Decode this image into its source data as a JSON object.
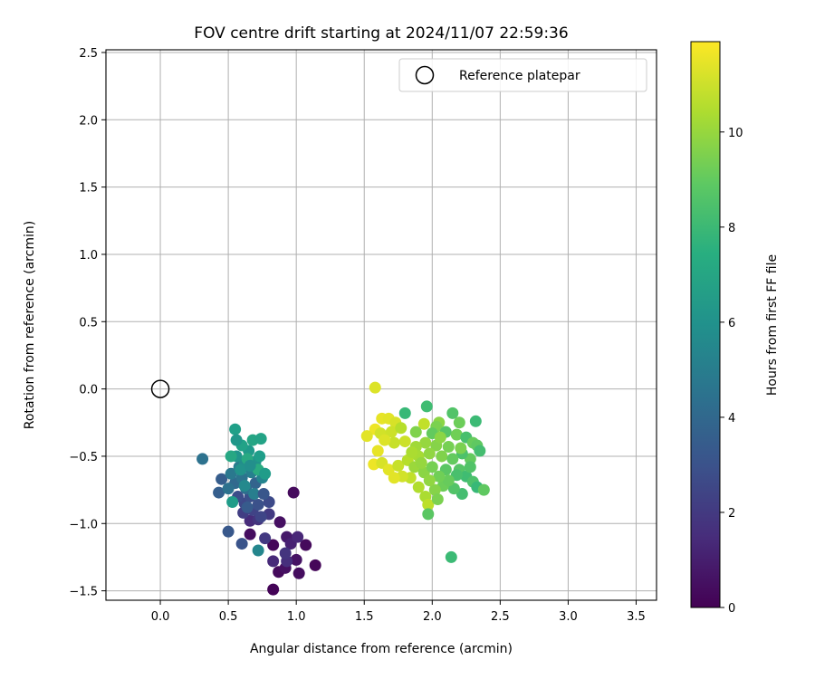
{
  "chart_data": {
    "type": "scatter",
    "title": "FOV centre drift starting at 2024/11/07 22:59:36",
    "xlabel": "Angular distance from reference (arcmin)",
    "ylabel": "Rotation from reference (arcmin)",
    "xlim": [
      -0.4,
      3.65
    ],
    "ylim": [
      -1.57,
      2.52
    ],
    "xticks": [
      0.0,
      0.5,
      1.0,
      1.5,
      2.0,
      2.5,
      3.0,
      3.5
    ],
    "yticks": [
      -1.5,
      -1.0,
      -0.5,
      0.0,
      0.5,
      1.0,
      1.5,
      2.0,
      2.5
    ],
    "xtick_labels": [
      "0.0",
      "0.5",
      "1.0",
      "1.5",
      "2.0",
      "2.5",
      "3.0",
      "3.5"
    ],
    "ytick_labels": [
      "−1.5",
      "−1.0",
      "−0.5",
      "0.0",
      "0.5",
      "1.0",
      "1.5",
      "2.0",
      "2.5"
    ],
    "grid": true,
    "legend": {
      "placement": "top-right",
      "entries": [
        "Reference platepar"
      ]
    },
    "reference_point": {
      "x": 0.0,
      "y": 0.0
    },
    "colorbar": {
      "label": "Hours from first FF file",
      "range": [
        0,
        11.9
      ],
      "ticks": [
        0,
        2,
        4,
        6,
        8,
        10
      ],
      "tick_labels": [
        "0",
        "2",
        "4",
        "6",
        "8",
        "10"
      ],
      "colormap": "viridis"
    },
    "points": [
      {
        "x": 0.83,
        "y": -1.49,
        "h": 0.1
      },
      {
        "x": 0.87,
        "y": -1.36,
        "h": 0.3
      },
      {
        "x": 0.92,
        "y": -1.33,
        "h": 0.5
      },
      {
        "x": 1.02,
        "y": -1.37,
        "h": 0.4
      },
      {
        "x": 1.14,
        "y": -1.31,
        "h": 0.2
      },
      {
        "x": 1.07,
        "y": -1.16,
        "h": 0.3
      },
      {
        "x": 1.0,
        "y": -1.27,
        "h": 0.6
      },
      {
        "x": 0.83,
        "y": -1.16,
        "h": 0.2
      },
      {
        "x": 0.88,
        "y": -0.99,
        "h": 0.5
      },
      {
        "x": 0.98,
        "y": -0.77,
        "h": 0.3
      },
      {
        "x": 0.66,
        "y": -1.08,
        "h": 0.4
      },
      {
        "x": 0.93,
        "y": -1.1,
        "h": 0.8
      },
      {
        "x": 0.96,
        "y": -1.15,
        "h": 1.1
      },
      {
        "x": 1.01,
        "y": -1.1,
        "h": 1.3
      },
      {
        "x": 0.83,
        "y": -1.28,
        "h": 1.4
      },
      {
        "x": 0.93,
        "y": -1.28,
        "h": 1.6
      },
      {
        "x": 0.92,
        "y": -1.22,
        "h": 1.8
      },
      {
        "x": 0.77,
        "y": -1.11,
        "h": 2.0
      },
      {
        "x": 0.66,
        "y": -0.98,
        "h": 1.5
      },
      {
        "x": 0.72,
        "y": -0.97,
        "h": 1.8
      },
      {
        "x": 0.8,
        "y": -0.93,
        "h": 2.0
      },
      {
        "x": 0.61,
        "y": -0.92,
        "h": 2.2
      },
      {
        "x": 0.68,
        "y": -0.9,
        "h": 2.4
      },
      {
        "x": 0.62,
        "y": -0.85,
        "h": 2.6
      },
      {
        "x": 0.74,
        "y": -0.95,
        "h": 2.5
      },
      {
        "x": 0.57,
        "y": -0.8,
        "h": 2.8
      },
      {
        "x": 0.66,
        "y": -0.8,
        "h": 2.9
      },
      {
        "x": 0.8,
        "y": -0.84,
        "h": 2.7
      },
      {
        "x": 0.72,
        "y": -0.86,
        "h": 3.0
      },
      {
        "x": 0.6,
        "y": -1.15,
        "h": 3.1
      },
      {
        "x": 0.5,
        "y": -1.06,
        "h": 3.3
      },
      {
        "x": 0.45,
        "y": -0.67,
        "h": 3.5
      },
      {
        "x": 0.43,
        "y": -0.77,
        "h": 3.6
      },
      {
        "x": 0.31,
        "y": -0.52,
        "h": 4.5
      },
      {
        "x": 0.72,
        "y": -1.2,
        "h": 5.5
      },
      {
        "x": 0.55,
        "y": -0.7,
        "h": 4.0
      },
      {
        "x": 0.63,
        "y": -0.74,
        "h": 4.2
      },
      {
        "x": 0.7,
        "y": -0.7,
        "h": 3.8
      },
      {
        "x": 0.52,
        "y": -0.63,
        "h": 4.8
      },
      {
        "x": 0.58,
        "y": -0.58,
        "h": 5.0
      },
      {
        "x": 0.67,
        "y": -0.62,
        "h": 5.2
      },
      {
        "x": 0.75,
        "y": -0.66,
        "h": 5.4
      },
      {
        "x": 0.5,
        "y": -0.74,
        "h": 4.4
      },
      {
        "x": 0.6,
        "y": -0.66,
        "h": 4.6
      },
      {
        "x": 0.53,
        "y": -0.84,
        "h": 6.5
      },
      {
        "x": 0.62,
        "y": -0.55,
        "h": 5.8
      },
      {
        "x": 0.7,
        "y": -0.54,
        "h": 6.0
      },
      {
        "x": 0.56,
        "y": -0.5,
        "h": 6.2
      },
      {
        "x": 0.65,
        "y": -0.46,
        "h": 6.4
      },
      {
        "x": 0.73,
        "y": -0.5,
        "h": 6.6
      },
      {
        "x": 0.6,
        "y": -0.42,
        "h": 6.8
      },
      {
        "x": 0.68,
        "y": -0.38,
        "h": 7.0
      },
      {
        "x": 0.74,
        "y": -0.37,
        "h": 6.9
      },
      {
        "x": 0.55,
        "y": -0.3,
        "h": 6.7
      },
      {
        "x": 0.56,
        "y": -0.38,
        "h": 6.3
      },
      {
        "x": 0.52,
        "y": -0.5,
        "h": 7.1
      },
      {
        "x": 0.64,
        "y": -0.52,
        "h": 7.2
      },
      {
        "x": 0.72,
        "y": -0.6,
        "h": 7.3
      },
      {
        "x": 0.77,
        "y": -0.63,
        "h": 6.5
      },
      {
        "x": 0.59,
        "y": -0.6,
        "h": 6.1
      },
      {
        "x": 0.66,
        "y": -0.57,
        "h": 5.9
      },
      {
        "x": 0.62,
        "y": -0.72,
        "h": 5.6
      },
      {
        "x": 0.69,
        "y": -0.78,
        "h": 5.1
      },
      {
        "x": 0.64,
        "y": -0.88,
        "h": 3.4
      },
      {
        "x": 0.76,
        "y": -0.78,
        "h": 3.2
      },
      {
        "x": 1.58,
        "y": 0.01,
        "h": 11.3
      },
      {
        "x": 1.96,
        "y": -0.13,
        "h": 8.2
      },
      {
        "x": 2.15,
        "y": -0.18,
        "h": 8.6
      },
      {
        "x": 1.8,
        "y": -0.18,
        "h": 8.0
      },
      {
        "x": 2.32,
        "y": -0.24,
        "h": 8.1
      },
      {
        "x": 2.2,
        "y": -0.25,
        "h": 9.2
      },
      {
        "x": 1.63,
        "y": -0.22,
        "h": 11.5
      },
      {
        "x": 1.68,
        "y": -0.22,
        "h": 11.4
      },
      {
        "x": 1.73,
        "y": -0.25,
        "h": 11.2
      },
      {
        "x": 1.94,
        "y": -0.26,
        "h": 10.8
      },
      {
        "x": 2.05,
        "y": -0.25,
        "h": 9.8
      },
      {
        "x": 2.03,
        "y": -0.28,
        "h": 9.5
      },
      {
        "x": 1.58,
        "y": -0.3,
        "h": 11.6
      },
      {
        "x": 1.62,
        "y": -0.33,
        "h": 11.1
      },
      {
        "x": 1.52,
        "y": -0.35,
        "h": 11.4
      },
      {
        "x": 1.7,
        "y": -0.32,
        "h": 11.0
      },
      {
        "x": 1.77,
        "y": -0.29,
        "h": 10.6
      },
      {
        "x": 1.88,
        "y": -0.32,
        "h": 9.6
      },
      {
        "x": 2.0,
        "y": -0.33,
        "h": 9.0
      },
      {
        "x": 2.1,
        "y": -0.32,
        "h": 8.7
      },
      {
        "x": 2.18,
        "y": -0.34,
        "h": 9.3
      },
      {
        "x": 2.25,
        "y": -0.36,
        "h": 8.4
      },
      {
        "x": 2.3,
        "y": -0.4,
        "h": 9.1
      },
      {
        "x": 2.33,
        "y": -0.42,
        "h": 8.9
      },
      {
        "x": 2.35,
        "y": -0.46,
        "h": 8.3
      },
      {
        "x": 2.28,
        "y": -0.52,
        "h": 9.0
      },
      {
        "x": 2.22,
        "y": -0.48,
        "h": 8.5
      },
      {
        "x": 2.12,
        "y": -0.43,
        "h": 9.4
      },
      {
        "x": 2.03,
        "y": -0.42,
        "h": 9.7
      },
      {
        "x": 1.95,
        "y": -0.4,
        "h": 10.0
      },
      {
        "x": 1.88,
        "y": -0.43,
        "h": 10.2
      },
      {
        "x": 1.8,
        "y": -0.39,
        "h": 11.0
      },
      {
        "x": 1.72,
        "y": -0.4,
        "h": 10.9
      },
      {
        "x": 1.65,
        "y": -0.38,
        "h": 11.3
      },
      {
        "x": 1.6,
        "y": -0.46,
        "h": 11.5
      },
      {
        "x": 1.57,
        "y": -0.56,
        "h": 11.6
      },
      {
        "x": 1.63,
        "y": -0.55,
        "h": 11.2
      },
      {
        "x": 1.68,
        "y": -0.6,
        "h": 11.4
      },
      {
        "x": 1.75,
        "y": -0.57,
        "h": 10.9
      },
      {
        "x": 1.82,
        "y": -0.53,
        "h": 10.6
      },
      {
        "x": 1.9,
        "y": -0.5,
        "h": 10.3
      },
      {
        "x": 1.98,
        "y": -0.48,
        "h": 9.9
      },
      {
        "x": 2.07,
        "y": -0.5,
        "h": 9.6
      },
      {
        "x": 2.15,
        "y": -0.52,
        "h": 9.0
      },
      {
        "x": 2.2,
        "y": -0.6,
        "h": 8.7
      },
      {
        "x": 2.25,
        "y": -0.65,
        "h": 8.2
      },
      {
        "x": 2.3,
        "y": -0.69,
        "h": 8.5
      },
      {
        "x": 2.33,
        "y": -0.73,
        "h": 8.0
      },
      {
        "x": 2.38,
        "y": -0.75,
        "h": 8.9
      },
      {
        "x": 2.22,
        "y": -0.78,
        "h": 8.3
      },
      {
        "x": 2.16,
        "y": -0.74,
        "h": 8.6
      },
      {
        "x": 2.08,
        "y": -0.72,
        "h": 9.2
      },
      {
        "x": 2.02,
        "y": -0.75,
        "h": 9.7
      },
      {
        "x": 1.95,
        "y": -0.8,
        "h": 10.4
      },
      {
        "x": 1.97,
        "y": -0.86,
        "h": 10.7
      },
      {
        "x": 2.04,
        "y": -0.82,
        "h": 9.5
      },
      {
        "x": 1.9,
        "y": -0.73,
        "h": 10.5
      },
      {
        "x": 1.84,
        "y": -0.66,
        "h": 10.8
      },
      {
        "x": 1.78,
        "y": -0.65,
        "h": 11.1
      },
      {
        "x": 1.72,
        "y": -0.66,
        "h": 11.4
      },
      {
        "x": 1.87,
        "y": -0.58,
        "h": 10.1
      },
      {
        "x": 1.94,
        "y": -0.62,
        "h": 9.8
      },
      {
        "x": 2.0,
        "y": -0.58,
        "h": 9.4
      },
      {
        "x": 2.1,
        "y": -0.6,
        "h": 8.8
      },
      {
        "x": 2.18,
        "y": -0.64,
        "h": 8.4
      },
      {
        "x": 2.12,
        "y": -0.68,
        "h": 9.1
      },
      {
        "x": 2.05,
        "y": -0.65,
        "h": 9.3
      },
      {
        "x": 1.98,
        "y": -0.68,
        "h": 9.9
      },
      {
        "x": 1.92,
        "y": -0.55,
        "h": 10.0
      },
      {
        "x": 1.97,
        "y": -0.93,
        "h": 8.8
      },
      {
        "x": 2.14,
        "y": -1.25,
        "h": 8.1
      },
      {
        "x": 2.21,
        "y": -0.44,
        "h": 9.5
      },
      {
        "x": 2.28,
        "y": -0.58,
        "h": 8.6
      },
      {
        "x": 2.06,
        "y": -0.36,
        "h": 9.8
      },
      {
        "x": 1.85,
        "y": -0.47,
        "h": 10.4
      }
    ]
  }
}
